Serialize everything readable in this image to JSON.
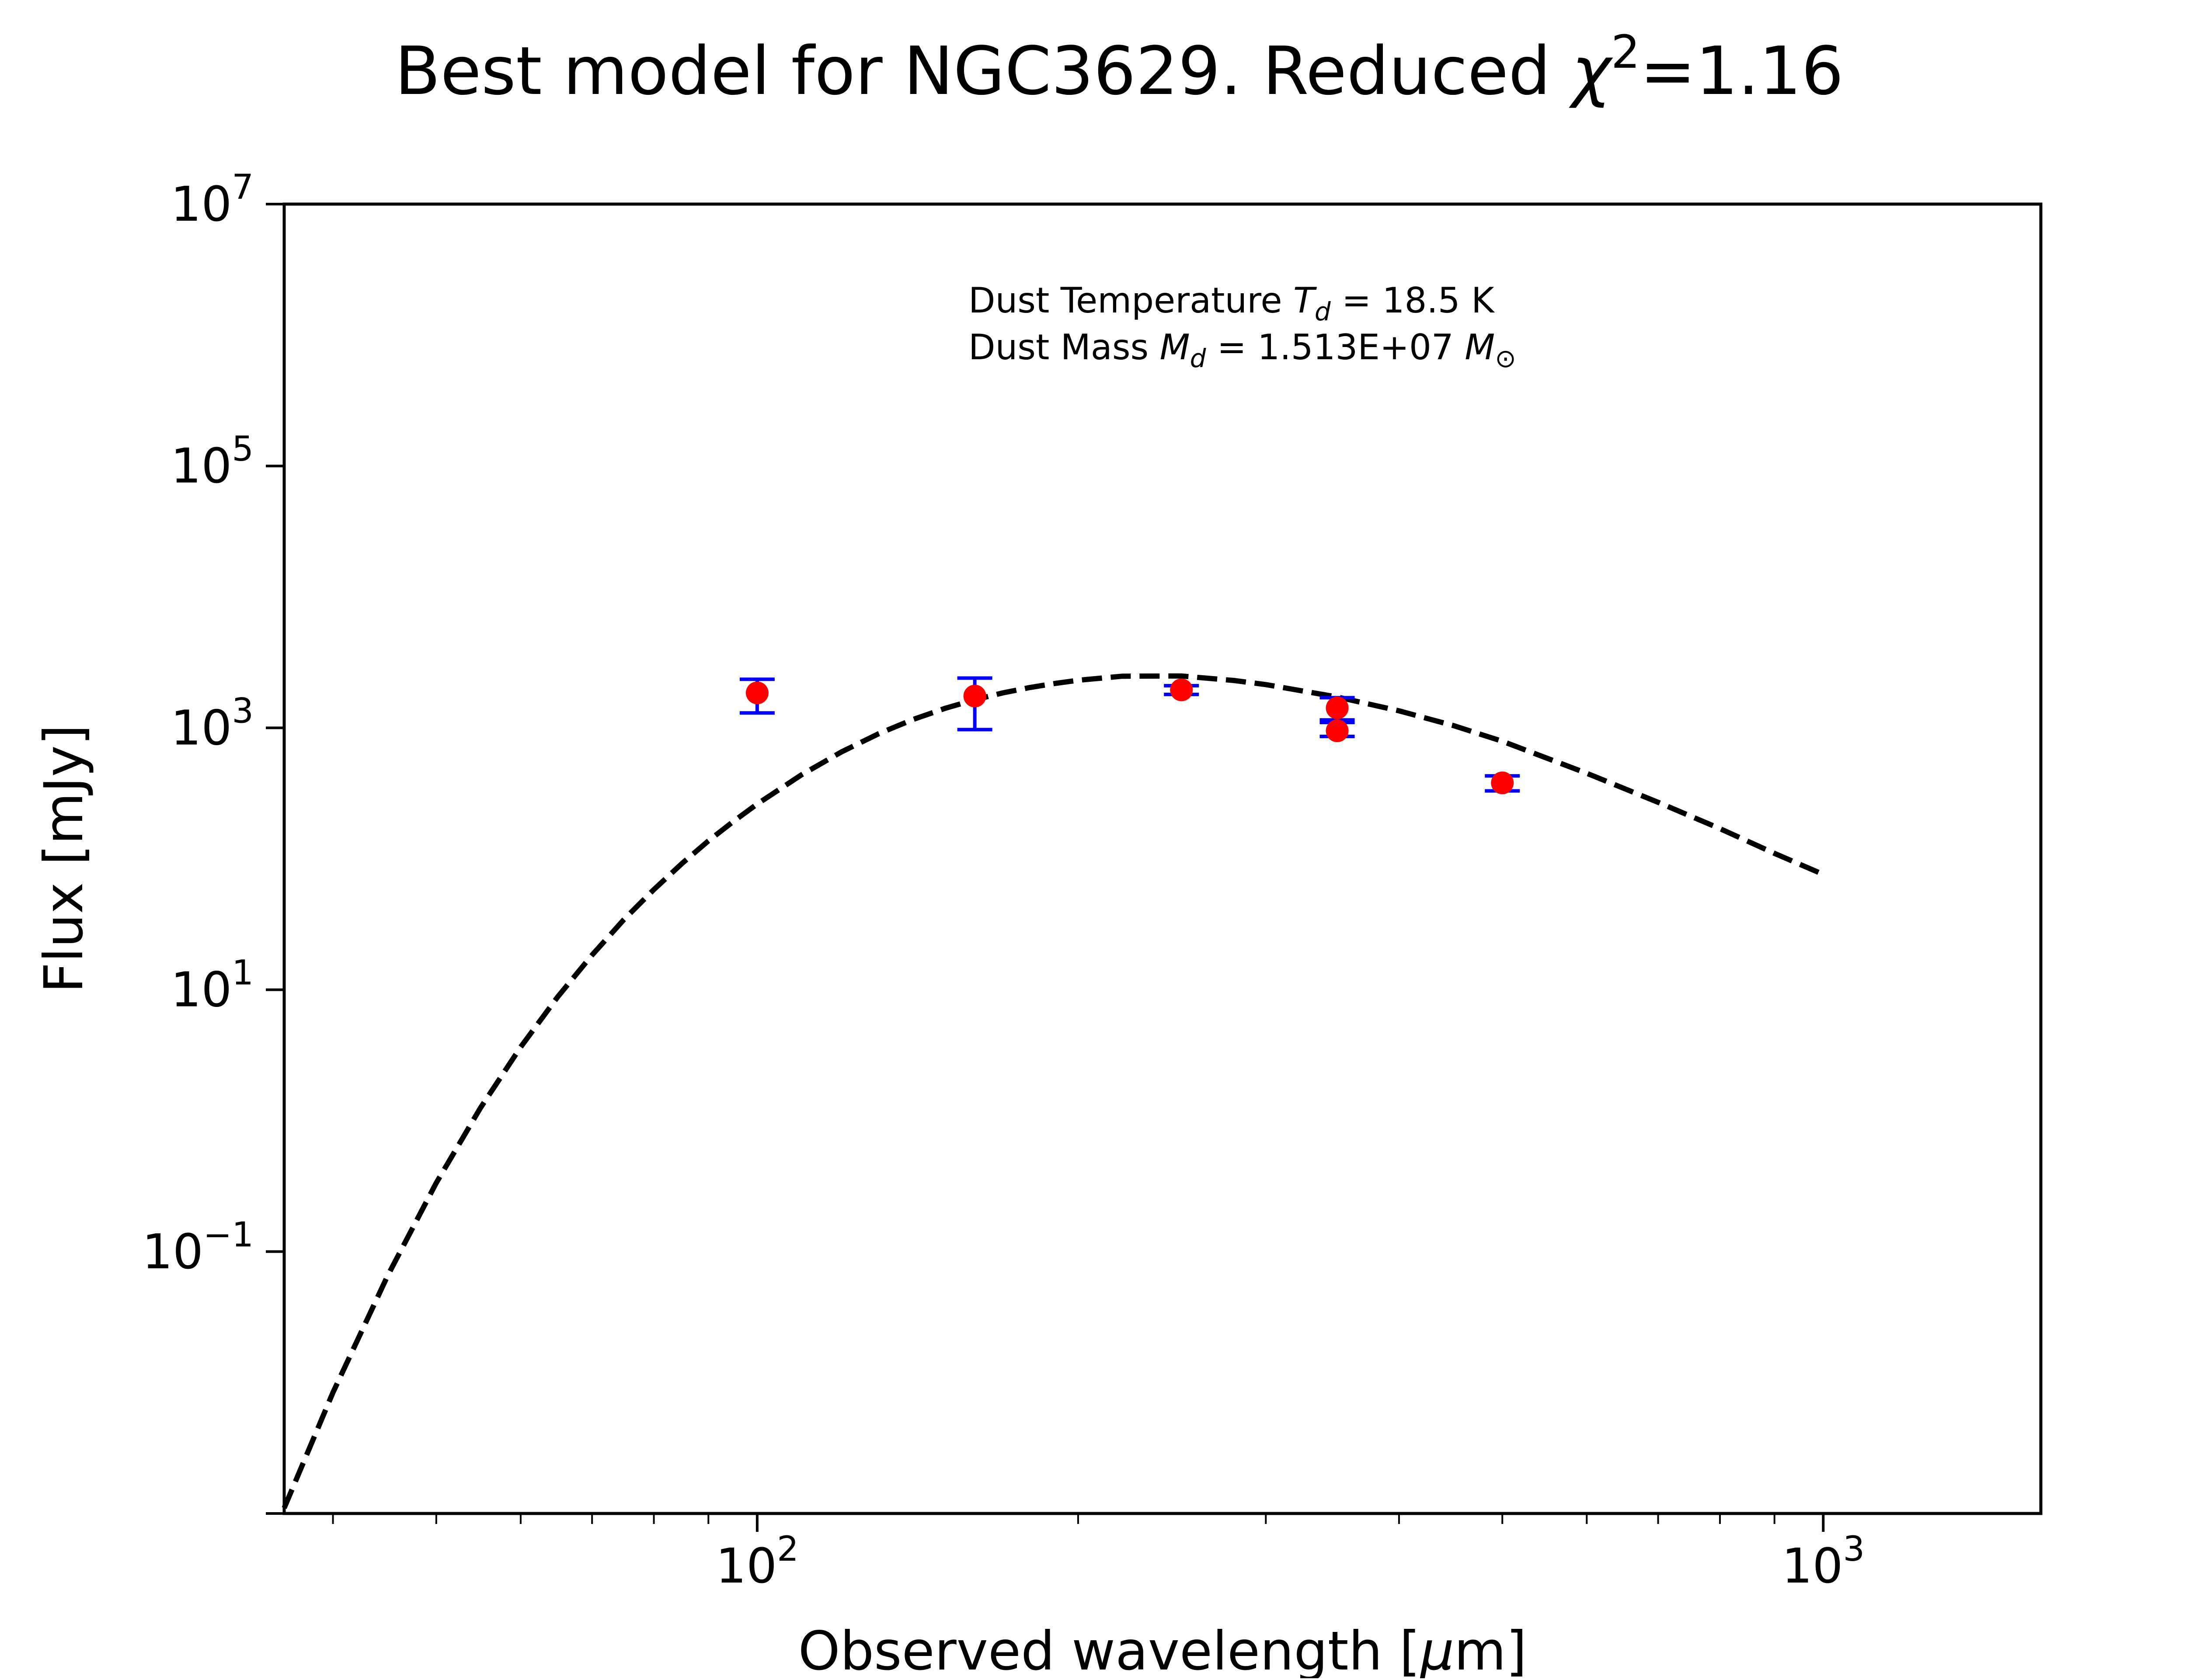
{
  "chart_data": {
    "type": "scatter",
    "title": {
      "prefix": "Best model for NGC3629. Reduced ",
      "chi": "χ",
      "sup": "2",
      "suffix": "=1.16"
    },
    "xlabel": {
      "text": "Observed wavelength [",
      "mu": "μ",
      "unit_end": "m]"
    },
    "ylabel": "Flux [mJy]",
    "xscale": "log",
    "yscale": "log",
    "xlim": [
      36,
      1600
    ],
    "ylim": [
      0.001,
      10000000
    ],
    "x_ticks": [
      {
        "value": 100,
        "base": "10",
        "exp": "2"
      },
      {
        "value": 1000,
        "base": "10",
        "exp": "3"
      }
    ],
    "x_minor_ticks": [
      40,
      50,
      60,
      70,
      80,
      90,
      200,
      300,
      400,
      500,
      600,
      700,
      800,
      900
    ],
    "y_ticks": [
      {
        "value": 0.1,
        "base": "10",
        "exp": "−1"
      },
      {
        "value": 10,
        "base": "10",
        "exp": "1"
      },
      {
        "value": 1000,
        "base": "10",
        "exp": "3"
      },
      {
        "value": 100000,
        "base": "10",
        "exp": "5"
      },
      {
        "value": 10000000,
        "base": "10",
        "exp": "7"
      }
    ],
    "y_minor_ticks": [
      0.001
    ],
    "grid": false,
    "annotation": {
      "line1_prefix": "Dust Temperature ",
      "line1_sym": "T",
      "line1_sub": "d",
      "line1_value": " = 18.5 K",
      "line2_prefix": "Dust Mass ",
      "line2_sym": "M",
      "line2_sub": "d",
      "line2_value": " = 1.513E+07 ",
      "line2_unit_sym": "M",
      "line2_unit_sub": "⊙"
    },
    "series": [
      {
        "kind": "model",
        "style": "dashed",
        "color": "#000000",
        "x": [
          36,
          40,
          45,
          50,
          55,
          60,
          65,
          70,
          75,
          80,
          85,
          90,
          95,
          100,
          110,
          120,
          130,
          140,
          150,
          160,
          170,
          180,
          190,
          200,
          220,
          250,
          280,
          300,
          350,
          400,
          450,
          500,
          600,
          700,
          800,
          900,
          1000
        ],
        "y": [
          0.0011,
          0.0084,
          0.0651,
          0.335,
          1.25,
          3.65,
          8.83,
          18.4,
          34.4,
          58.2,
          92.0,
          137,
          193,
          262,
          437,
          656,
          902,
          1158,
          1408,
          1641,
          1850,
          2030,
          2180,
          2310,
          2480,
          2490,
          2300,
          2140,
          1720,
          1350,
          1040,
          790,
          450,
          270,
          170,
          110,
          76
        ]
      },
      {
        "kind": "observed",
        "marker_color": "#ff0000",
        "errorbar_color": "#0000ff",
        "points": [
          {
            "x": 100,
            "y": 1850,
            "yerr_low": 1300,
            "yerr_high": 2350
          },
          {
            "x": 160,
            "y": 1750,
            "yerr_low": 970,
            "yerr_high": 2400
          },
          {
            "x": 250,
            "y": 1950,
            "yerr_low": 1800,
            "yerr_high": 2100
          },
          {
            "x": 350,
            "y": 1420,
            "yerr_low": 1150,
            "yerr_high": 1700
          },
          {
            "x": 350,
            "y": 950,
            "yerr_low": 860,
            "yerr_high": 1100
          },
          {
            "x": 500,
            "y": 380,
            "yerr_low": 330,
            "yerr_high": 430
          }
        ]
      }
    ]
  }
}
